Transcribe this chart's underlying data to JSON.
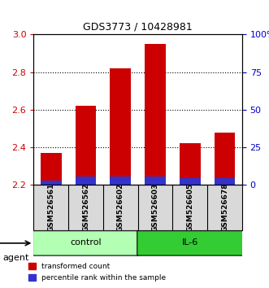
{
  "title": "GDS3773 / 10428981",
  "samples": [
    "GSM526561",
    "GSM526562",
    "GSM526602",
    "GSM526603",
    "GSM526605",
    "GSM526678"
  ],
  "red_values": [
    2.37,
    2.62,
    2.82,
    2.95,
    2.42,
    2.48
  ],
  "blue_values": [
    2.225,
    2.245,
    2.245,
    2.245,
    2.235,
    2.235
  ],
  "baseline": 2.2,
  "ylim_left": [
    2.2,
    3.0
  ],
  "ylim_right": [
    0,
    100
  ],
  "yticks_left": [
    2.2,
    2.4,
    2.6,
    2.8,
    3.0
  ],
  "yticks_right": [
    0,
    25,
    50,
    75,
    100
  ],
  "ytick_labels_right": [
    "0",
    "25",
    "50",
    "75",
    "100%"
  ],
  "groups": [
    {
      "label": "control",
      "start": 0,
      "end": 3,
      "color": "#b3ffb3"
    },
    {
      "label": "IL-6",
      "start": 3,
      "end": 6,
      "color": "#33cc33"
    }
  ],
  "bar_width": 0.6,
  "bar_color_red": "#cc0000",
  "bar_color_blue": "#3333cc",
  "legend_red": "transformed count",
  "legend_blue": "percentile rank within the sample",
  "agent_label": "agent",
  "background_color": "#ffffff",
  "plot_bg": "#ffffff",
  "tick_label_color_left": "#cc0000",
  "tick_label_color_right": "#0000cc",
  "grid_color": "#000000",
  "grid_linestyle": "dotted"
}
